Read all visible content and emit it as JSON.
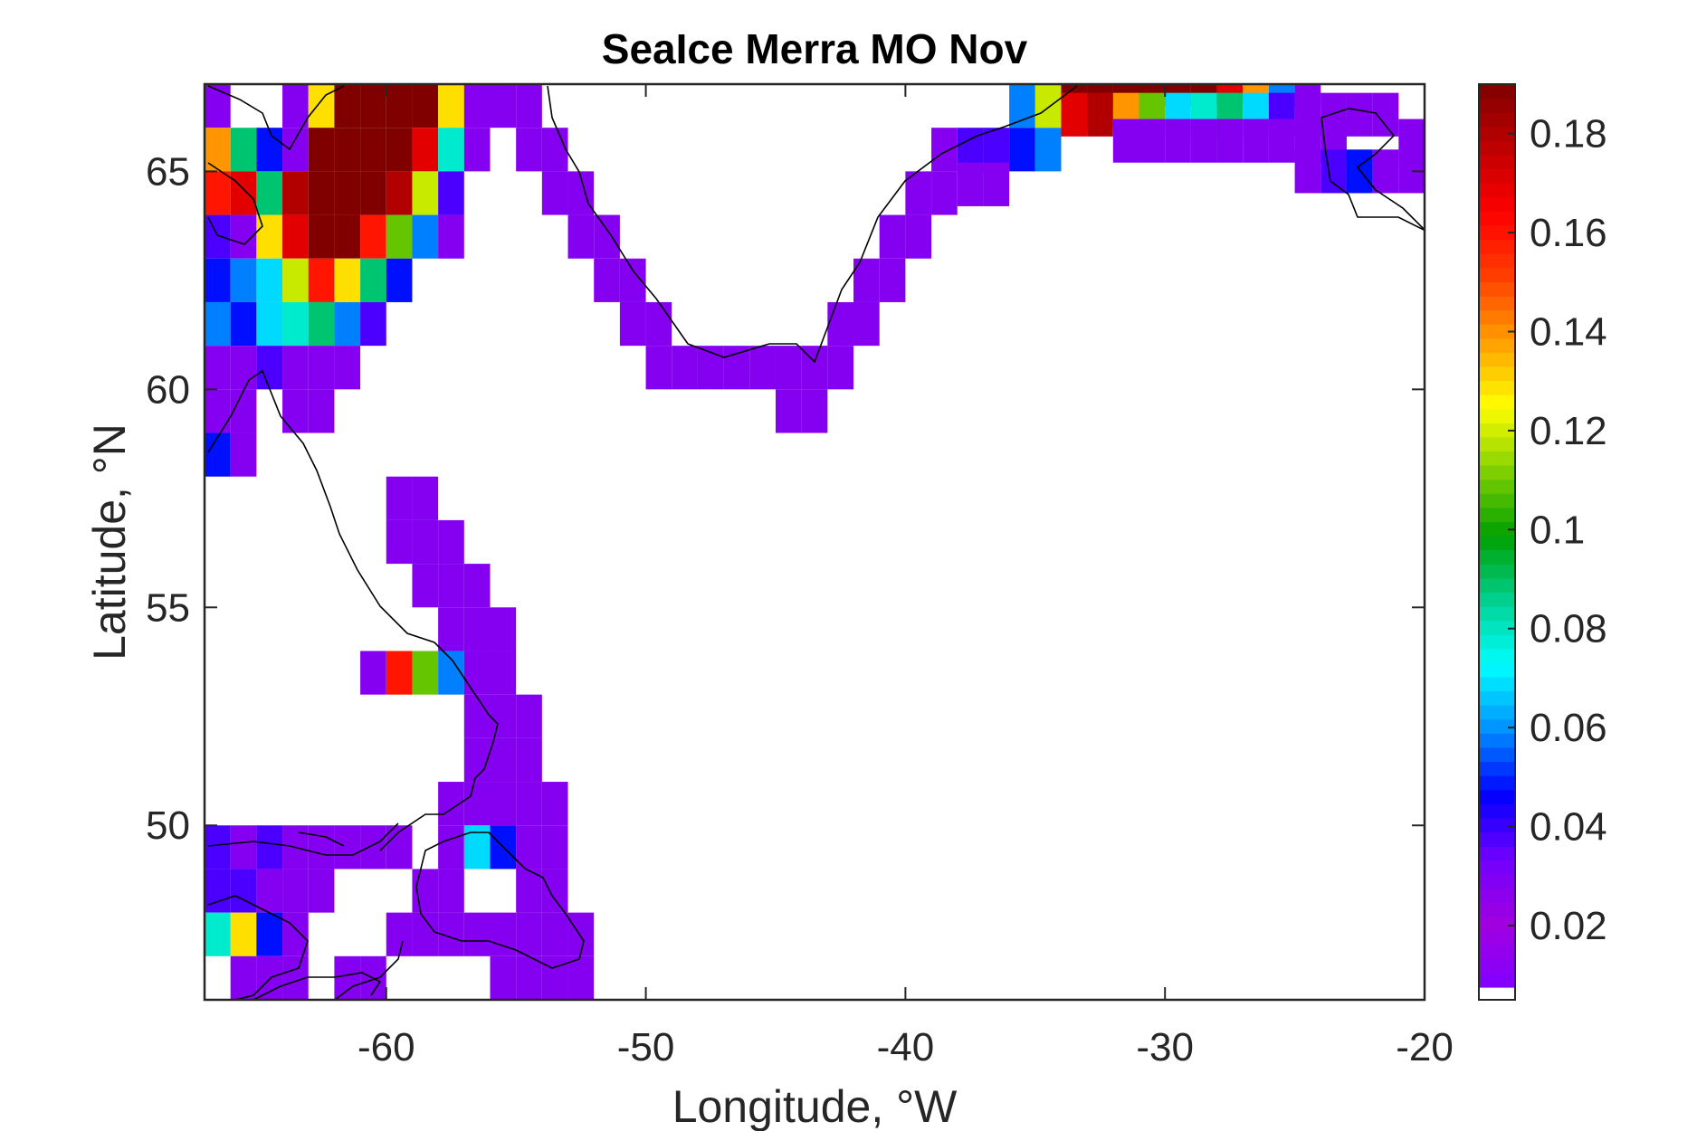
{
  "chart_data": {
    "type": "heatmap",
    "title": "SeaIce Merra MO Nov",
    "xlabel": "Longitude, °W",
    "ylabel": "Latitude, °N",
    "xlim": [
      -67,
      -20
    ],
    "ylim": [
      46,
      67
    ],
    "xticks": [
      -60,
      -50,
      -40,
      -30,
      -20
    ],
    "xtick_labels": [
      "-60",
      "-50",
      "-40",
      "-30",
      "-20"
    ],
    "yticks": [
      50,
      55,
      60,
      65
    ],
    "ytick_labels": [
      "50",
      "55",
      "60",
      "65"
    ],
    "grid": false,
    "colorbar": {
      "min": 0.005,
      "max": 0.19,
      "ticks": [
        0.02,
        0.04,
        0.06,
        0.08,
        0.1,
        0.12,
        0.14,
        0.16,
        0.18
      ],
      "tick_labels": [
        "0.02",
        "0.04",
        "0.06",
        "0.08",
        "0.1",
        "0.12",
        "0.14",
        "0.16",
        "0.18"
      ],
      "colormap": [
        "#ffffff",
        "#8000ff",
        "#a000e0",
        "#7000ff",
        "#0000ff",
        "#0090ff",
        "#00ffff",
        "#00d090",
        "#00a000",
        "#80d000",
        "#ffff00",
        "#ffa000",
        "#ff4000",
        "#ff0000",
        "#c00000",
        "#800000"
      ],
      "placement": "right"
    },
    "cell_size_deg": 1,
    "cells": [
      {
        "lon": -66.5,
        "lat": 66.5,
        "v": 0.03
      },
      {
        "lon": -63.5,
        "lat": 66.5,
        "v": 0.03
      },
      {
        "lon": -62.5,
        "lat": 66.5,
        "v": 0.13
      },
      {
        "lon": -61.5,
        "lat": 66.5,
        "v": 0.19
      },
      {
        "lon": -60.5,
        "lat": 66.5,
        "v": 0.19
      },
      {
        "lon": -59.5,
        "lat": 66.5,
        "v": 0.19
      },
      {
        "lon": -58.5,
        "lat": 66.5,
        "v": 0.19
      },
      {
        "lon": -57.5,
        "lat": 66.5,
        "v": 0.13
      },
      {
        "lon": -56.5,
        "lat": 66.5,
        "v": 0.03
      },
      {
        "lon": -66.5,
        "lat": 65.5,
        "v": 0.14
      },
      {
        "lon": -65.5,
        "lat": 65.5,
        "v": 0.09
      },
      {
        "lon": -64.5,
        "lat": 65.5,
        "v": 0.05
      },
      {
        "lon": -63.5,
        "lat": 65.5,
        "v": 0.03
      },
      {
        "lon": -62.5,
        "lat": 65.5,
        "v": 0.19
      },
      {
        "lon": -61.5,
        "lat": 65.5,
        "v": 0.19
      },
      {
        "lon": -60.5,
        "lat": 65.5,
        "v": 0.19
      },
      {
        "lon": -59.5,
        "lat": 65.5,
        "v": 0.19
      },
      {
        "lon": -58.5,
        "lat": 65.5,
        "v": 0.17
      },
      {
        "lon": -57.5,
        "lat": 65.5,
        "v": 0.08
      },
      {
        "lon": -56.5,
        "lat": 65.5,
        "v": 0.03
      },
      {
        "lon": -66.5,
        "lat": 64.5,
        "v": 0.16
      },
      {
        "lon": -65.5,
        "lat": 64.5,
        "v": 0.17
      },
      {
        "lon": -64.5,
        "lat": 64.5,
        "v": 0.09
      },
      {
        "lon": -63.5,
        "lat": 64.5,
        "v": 0.18
      },
      {
        "lon": -62.5,
        "lat": 64.5,
        "v": 0.19
      },
      {
        "lon": -61.5,
        "lat": 64.5,
        "v": 0.19
      },
      {
        "lon": -60.5,
        "lat": 64.5,
        "v": 0.19
      },
      {
        "lon": -59.5,
        "lat": 64.5,
        "v": 0.18
      },
      {
        "lon": -58.5,
        "lat": 64.5,
        "v": 0.12
      },
      {
        "lon": -57.5,
        "lat": 64.5,
        "v": 0.04
      },
      {
        "lon": -66.5,
        "lat": 63.5,
        "v": 0.04
      },
      {
        "lon": -65.5,
        "lat": 63.5,
        "v": 0.03
      },
      {
        "lon": -64.5,
        "lat": 63.5,
        "v": 0.13
      },
      {
        "lon": -63.5,
        "lat": 63.5,
        "v": 0.17
      },
      {
        "lon": -62.5,
        "lat": 63.5,
        "v": 0.19
      },
      {
        "lon": -61.5,
        "lat": 63.5,
        "v": 0.19
      },
      {
        "lon": -60.5,
        "lat": 63.5,
        "v": 0.16
      },
      {
        "lon": -59.5,
        "lat": 63.5,
        "v": 0.11
      },
      {
        "lon": -58.5,
        "lat": 63.5,
        "v": 0.06
      },
      {
        "lon": -57.5,
        "lat": 63.5,
        "v": 0.03
      },
      {
        "lon": -66.5,
        "lat": 62.5,
        "v": 0.05
      },
      {
        "lon": -65.5,
        "lat": 62.5,
        "v": 0.06
      },
      {
        "lon": -64.5,
        "lat": 62.5,
        "v": 0.07
      },
      {
        "lon": -63.5,
        "lat": 62.5,
        "v": 0.12
      },
      {
        "lon": -62.5,
        "lat": 62.5,
        "v": 0.16
      },
      {
        "lon": -61.5,
        "lat": 62.5,
        "v": 0.13
      },
      {
        "lon": -60.5,
        "lat": 62.5,
        "v": 0.09
      },
      {
        "lon": -59.5,
        "lat": 62.5,
        "v": 0.05
      },
      {
        "lon": -66.5,
        "lat": 61.5,
        "v": 0.06
      },
      {
        "lon": -65.5,
        "lat": 61.5,
        "v": 0.05
      },
      {
        "lon": -64.5,
        "lat": 61.5,
        "v": 0.07
      },
      {
        "lon": -63.5,
        "lat": 61.5,
        "v": 0.08
      },
      {
        "lon": -62.5,
        "lat": 61.5,
        "v": 0.09
      },
      {
        "lon": -61.5,
        "lat": 61.5,
        "v": 0.06
      },
      {
        "lon": -60.5,
        "lat": 61.5,
        "v": 0.04
      },
      {
        "lon": -66.5,
        "lat": 60.5,
        "v": 0.03
      },
      {
        "lon": -65.5,
        "lat": 60.5,
        "v": 0.03
      },
      {
        "lon": -64.5,
        "lat": 60.5,
        "v": 0.04
      },
      {
        "lon": -63.5,
        "lat": 60.5,
        "v": 0.03
      },
      {
        "lon": -62.5,
        "lat": 60.5,
        "v": 0.03
      },
      {
        "lon": -61.5,
        "lat": 60.5,
        "v": 0.03
      },
      {
        "lon": -66.5,
        "lat": 59.5,
        "v": 0.03
      },
      {
        "lon": -65.5,
        "lat": 59.5,
        "v": 0.03
      },
      {
        "lon": -63.5,
        "lat": 59.5,
        "v": 0.03
      },
      {
        "lon": -62.5,
        "lat": 59.5,
        "v": 0.03
      },
      {
        "lon": -66.5,
        "lat": 58.5,
        "v": 0.05
      },
      {
        "lon": -65.5,
        "lat": 58.5,
        "v": 0.03
      },
      {
        "lon": -59.5,
        "lat": 57.5,
        "v": 0.03
      },
      {
        "lon": -58.5,
        "lat": 57.5,
        "v": 0.03
      },
      {
        "lon": -59.5,
        "lat": 56.5,
        "v": 0.03
      },
      {
        "lon": -58.5,
        "lat": 56.5,
        "v": 0.03
      },
      {
        "lon": -57.5,
        "lat": 56.5,
        "v": 0.03
      },
      {
        "lon": -58.5,
        "lat": 55.5,
        "v": 0.03
      },
      {
        "lon": -57.5,
        "lat": 55.5,
        "v": 0.03
      },
      {
        "lon": -56.5,
        "lat": 55.5,
        "v": 0.03
      },
      {
        "lon": -57.5,
        "lat": 54.5,
        "v": 0.03
      },
      {
        "lon": -56.5,
        "lat": 54.5,
        "v": 0.03
      },
      {
        "lon": -55.5,
        "lat": 54.5,
        "v": 0.03
      },
      {
        "lon": -60.5,
        "lat": 53.5,
        "v": 0.03
      },
      {
        "lon": -59.5,
        "lat": 53.5,
        "v": 0.16
      },
      {
        "lon": -58.5,
        "lat": 53.5,
        "v": 0.11
      },
      {
        "lon": -57.5,
        "lat": 53.5,
        "v": 0.06
      },
      {
        "lon": -56.5,
        "lat": 53.5,
        "v": 0.03
      },
      {
        "lon": -55.5,
        "lat": 53.5,
        "v": 0.03
      },
      {
        "lon": -56.5,
        "lat": 52.5,
        "v": 0.03
      },
      {
        "lon": -55.5,
        "lat": 52.5,
        "v": 0.03
      },
      {
        "lon": -54.5,
        "lat": 52.5,
        "v": 0.03
      },
      {
        "lon": -56.5,
        "lat": 51.5,
        "v": 0.03
      },
      {
        "lon": -55.5,
        "lat": 51.5,
        "v": 0.03
      },
      {
        "lon": -54.5,
        "lat": 51.5,
        "v": 0.03
      },
      {
        "lon": -57.5,
        "lat": 50.5,
        "v": 0.03
      },
      {
        "lon": -56.5,
        "lat": 50.5,
        "v": 0.03
      },
      {
        "lon": -55.5,
        "lat": 50.5,
        "v": 0.03
      },
      {
        "lon": -54.5,
        "lat": 50.5,
        "v": 0.03
      },
      {
        "lon": -53.5,
        "lat": 50.5,
        "v": 0.03
      },
      {
        "lon": -66.5,
        "lat": 49.5,
        "v": 0.04
      },
      {
        "lon": -65.5,
        "lat": 49.5,
        "v": 0.03
      },
      {
        "lon": -64.5,
        "lat": 49.5,
        "v": 0.04
      },
      {
        "lon": -63.5,
        "lat": 49.5,
        "v": 0.03
      },
      {
        "lon": -62.5,
        "lat": 49.5,
        "v": 0.03
      },
      {
        "lon": -61.5,
        "lat": 49.5,
        "v": 0.03
      },
      {
        "lon": -60.5,
        "lat": 49.5,
        "v": 0.03
      },
      {
        "lon": -59.5,
        "lat": 49.5,
        "v": 0.03
      },
      {
        "lon": -57.5,
        "lat": 49.5,
        "v": 0.03
      },
      {
        "lon": -56.5,
        "lat": 49.5,
        "v": 0.07
      },
      {
        "lon": -55.5,
        "lat": 49.5,
        "v": 0.05
      },
      {
        "lon": -54.5,
        "lat": 49.5,
        "v": 0.03
      },
      {
        "lon": -53.5,
        "lat": 49.5,
        "v": 0.03
      },
      {
        "lon": -66.5,
        "lat": 48.5,
        "v": 0.04
      },
      {
        "lon": -65.5,
        "lat": 48.5,
        "v": 0.04
      },
      {
        "lon": -64.5,
        "lat": 48.5,
        "v": 0.03
      },
      {
        "lon": -63.5,
        "lat": 48.5,
        "v": 0.03
      },
      {
        "lon": -62.5,
        "lat": 48.5,
        "v": 0.03
      },
      {
        "lon": -58.5,
        "lat": 48.5,
        "v": 0.03
      },
      {
        "lon": -57.5,
        "lat": 48.5,
        "v": 0.03
      },
      {
        "lon": -54.5,
        "lat": 48.5,
        "v": 0.03
      },
      {
        "lon": -53.5,
        "lat": 48.5,
        "v": 0.03
      },
      {
        "lon": -66.5,
        "lat": 47.5,
        "v": 0.08
      },
      {
        "lon": -65.5,
        "lat": 47.5,
        "v": 0.13
      },
      {
        "lon": -64.5,
        "lat": 47.5,
        "v": 0.05
      },
      {
        "lon": -63.5,
        "lat": 47.5,
        "v": 0.03
      },
      {
        "lon": -59.5,
        "lat": 47.5,
        "v": 0.03
      },
      {
        "lon": -58.5,
        "lat": 47.5,
        "v": 0.03
      },
      {
        "lon": -57.5,
        "lat": 47.5,
        "v": 0.03
      },
      {
        "lon": -56.5,
        "lat": 47.5,
        "v": 0.03
      },
      {
        "lon": -55.5,
        "lat": 47.5,
        "v": 0.03
      },
      {
        "lon": -54.5,
        "lat": 47.5,
        "v": 0.03
      },
      {
        "lon": -53.5,
        "lat": 47.5,
        "v": 0.03
      },
      {
        "lon": -52.5,
        "lat": 47.5,
        "v": 0.03
      },
      {
        "lon": -65.5,
        "lat": 46.5,
        "v": 0.03
      },
      {
        "lon": -64.5,
        "lat": 46.5,
        "v": 0.03
      },
      {
        "lon": -63.5,
        "lat": 46.5,
        "v": 0.03
      },
      {
        "lon": -61.5,
        "lat": 46.5,
        "v": 0.03
      },
      {
        "lon": -60.5,
        "lat": 46.5,
        "v": 0.03
      },
      {
        "lon": -55.5,
        "lat": 46.5,
        "v": 0.03
      },
      {
        "lon": -54.5,
        "lat": 46.5,
        "v": 0.03
      },
      {
        "lon": -53.5,
        "lat": 46.5,
        "v": 0.03
      },
      {
        "lon": -52.5,
        "lat": 46.5,
        "v": 0.03
      },
      {
        "lon": -55.5,
        "lat": 66.5,
        "v": 0.03
      },
      {
        "lon": -54.5,
        "lat": 66.5,
        "v": 0.03
      },
      {
        "lon": -54.5,
        "lat": 65.5,
        "v": 0.03
      },
      {
        "lon": -53.5,
        "lat": 65.5,
        "v": 0.03
      },
      {
        "lon": -53.5,
        "lat": 64.5,
        "v": 0.03
      },
      {
        "lon": -52.5,
        "lat": 64.5,
        "v": 0.03
      },
      {
        "lon": -52.5,
        "lat": 63.5,
        "v": 0.03
      },
      {
        "lon": -51.5,
        "lat": 63.5,
        "v": 0.03
      },
      {
        "lon": -51.5,
        "lat": 62.5,
        "v": 0.03
      },
      {
        "lon": -50.5,
        "lat": 62.5,
        "v": 0.03
      },
      {
        "lon": -50.5,
        "lat": 61.5,
        "v": 0.03
      },
      {
        "lon": -49.5,
        "lat": 61.5,
        "v": 0.03
      },
      {
        "lon": -49.5,
        "lat": 60.5,
        "v": 0.03
      },
      {
        "lon": -48.5,
        "lat": 60.5,
        "v": 0.03
      },
      {
        "lon": -47.5,
        "lat": 60.5,
        "v": 0.03
      },
      {
        "lon": -46.5,
        "lat": 60.5,
        "v": 0.03
      },
      {
        "lon": -45.5,
        "lat": 60.5,
        "v": 0.03
      },
      {
        "lon": -44.5,
        "lat": 60.5,
        "v": 0.03
      },
      {
        "lon": -44.5,
        "lat": 59.5,
        "v": 0.03
      },
      {
        "lon": -43.5,
        "lat": 59.5,
        "v": 0.03
      },
      {
        "lon": -43.5,
        "lat": 60.5,
        "v": 0.03
      },
      {
        "lon": -42.5,
        "lat": 60.5,
        "v": 0.03
      },
      {
        "lon": -42.5,
        "lat": 61.5,
        "v": 0.03
      },
      {
        "lon": -41.5,
        "lat": 61.5,
        "v": 0.03
      },
      {
        "lon": -41.5,
        "lat": 62.5,
        "v": 0.03
      },
      {
        "lon": -40.5,
        "lat": 62.5,
        "v": 0.03
      },
      {
        "lon": -40.5,
        "lat": 63.5,
        "v": 0.03
      },
      {
        "lon": -39.5,
        "lat": 63.5,
        "v": 0.03
      },
      {
        "lon": -39.5,
        "lat": 64.5,
        "v": 0.03
      },
      {
        "lon": -38.5,
        "lat": 64.5,
        "v": 0.03
      },
      {
        "lon": -38.5,
        "lat": 65.5,
        "v": 0.03
      },
      {
        "lon": -37.5,
        "lat": 65.5,
        "v": 0.04
      },
      {
        "lon": -36.5,
        "lat": 65.5,
        "v": 0.04
      },
      {
        "lon": -35.5,
        "lat": 65.5,
        "v": 0.05
      },
      {
        "lon": -34.5,
        "lat": 65.5,
        "v": 0.06
      },
      {
        "lon": -35.5,
        "lat": 66.5,
        "v": 0.06
      },
      {
        "lon": -34.5,
        "lat": 66.5,
        "v": 0.12
      },
      {
        "lon": -33.5,
        "lat": 66.5,
        "v": 0.13
      },
      {
        "lon": -32.5,
        "lat": 66.5,
        "v": 0.03
      },
      {
        "lon": -33.5,
        "lat": 67.0,
        "v": 0.19
      },
      {
        "lon": -32.5,
        "lat": 67.0,
        "v": 0.19
      },
      {
        "lon": -31.5,
        "lat": 67.0,
        "v": 0.19
      },
      {
        "lon": -30.5,
        "lat": 67.0,
        "v": 0.19
      },
      {
        "lon": -29.5,
        "lat": 67.0,
        "v": 0.19
      },
      {
        "lon": -28.5,
        "lat": 67.0,
        "v": 0.19
      },
      {
        "lon": -27.5,
        "lat": 67.0,
        "v": 0.17
      },
      {
        "lon": -26.5,
        "lat": 67.0,
        "v": 0.14
      },
      {
        "lon": -25.5,
        "lat": 67.0,
        "v": 0.06
      },
      {
        "lon": -24.5,
        "lat": 67.0,
        "v": 0.03
      },
      {
        "lon": -33.5,
        "lat": 66.3,
        "v": 0.17
      },
      {
        "lon": -32.5,
        "lat": 66.3,
        "v": 0.18
      },
      {
        "lon": -31.5,
        "lat": 66.3,
        "v": 0.14
      },
      {
        "lon": -30.5,
        "lat": 66.3,
        "v": 0.11
      },
      {
        "lon": -29.5,
        "lat": 66.3,
        "v": 0.07
      },
      {
        "lon": -28.5,
        "lat": 66.3,
        "v": 0.08
      },
      {
        "lon": -27.5,
        "lat": 66.3,
        "v": 0.09
      },
      {
        "lon": -26.5,
        "lat": 66.3,
        "v": 0.07
      },
      {
        "lon": -25.5,
        "lat": 66.3,
        "v": 0.04
      },
      {
        "lon": -24.5,
        "lat": 66.3,
        "v": 0.03
      },
      {
        "lon": -23.5,
        "lat": 66.3,
        "v": 0.03
      },
      {
        "lon": -22.5,
        "lat": 66.3,
        "v": 0.03
      },
      {
        "lon": -21.5,
        "lat": 66.3,
        "v": 0.03
      },
      {
        "lon": -31.5,
        "lat": 65.7,
        "v": 0.03
      },
      {
        "lon": -30.5,
        "lat": 65.7,
        "v": 0.03
      },
      {
        "lon": -29.5,
        "lat": 65.7,
        "v": 0.03
      },
      {
        "lon": -28.5,
        "lat": 65.7,
        "v": 0.03
      },
      {
        "lon": -27.5,
        "lat": 65.7,
        "v": 0.03
      },
      {
        "lon": -26.5,
        "lat": 65.7,
        "v": 0.03
      },
      {
        "lon": -25.5,
        "lat": 65.7,
        "v": 0.03
      },
      {
        "lon": -24.5,
        "lat": 65.7,
        "v": 0.03
      },
      {
        "lon": -23.5,
        "lat": 65.7,
        "v": 0.03
      },
      {
        "lon": -20.5,
        "lat": 65.7,
        "v": 0.03
      },
      {
        "lon": -24.5,
        "lat": 65.0,
        "v": 0.03
      },
      {
        "lon": -23.5,
        "lat": 65.0,
        "v": 0.04
      },
      {
        "lon": -22.5,
        "lat": 65.0,
        "v": 0.05
      },
      {
        "lon": -21.5,
        "lat": 65.0,
        "v": 0.03
      },
      {
        "lon": -20.5,
        "lat": 65.0,
        "v": 0.03
      },
      {
        "lon": -36.5,
        "lat": 64.7,
        "v": 0.03
      },
      {
        "lon": -37.5,
        "lat": 64.7,
        "v": 0.03
      }
    ]
  }
}
